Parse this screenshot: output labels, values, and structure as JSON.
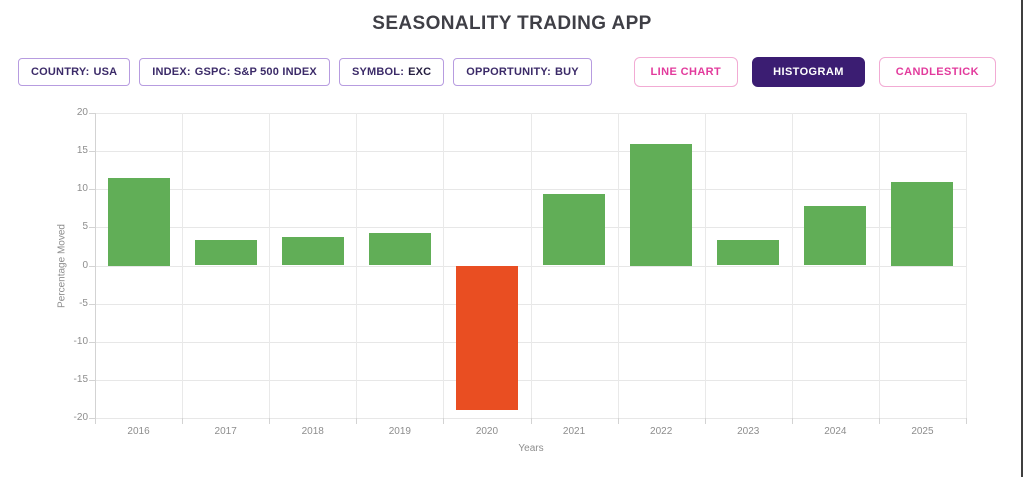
{
  "title": "SEASONALITY TRADING APP",
  "filters": [
    {
      "label": "COUNTRY:",
      "value": "USA"
    },
    {
      "label": "INDEX:",
      "value": "GSPC: S&P 500 INDEX"
    },
    {
      "label": "SYMBOL:",
      "value": "EXC"
    },
    {
      "label": "OPPORTUNITY:",
      "value": "BUY"
    }
  ],
  "view_buttons": [
    {
      "label": "LINE CHART",
      "active": false
    },
    {
      "label": "HISTOGRAM",
      "active": true
    },
    {
      "label": "CANDLESTICK",
      "active": false
    }
  ],
  "theme": {
    "accent_purple": "#3b1d72",
    "pink": "#e23a9c",
    "pink_border": "#f2abd4",
    "badge_border": "#b79ce0",
    "badge_text": "#3b2a68",
    "title_color": "#3f3f46"
  },
  "chart_data": {
    "type": "bar",
    "title": "",
    "categories": [
      "2016",
      "2017",
      "2018",
      "2019",
      "2020",
      "2021",
      "2022",
      "2023",
      "2024",
      "2025"
    ],
    "values": [
      11.5,
      3.4,
      3.8,
      4.2,
      -19,
      9.4,
      16,
      3.4,
      7.8,
      11
    ],
    "xlabel": "Years",
    "ylabel": "Percentage Moved",
    "ylim": [
      -20,
      20
    ],
    "ytick_step": 5,
    "yticks": [
      20,
      15,
      10,
      5,
      0,
      -5,
      -10,
      -15,
      -20
    ],
    "grid": true,
    "legend": false,
    "positive_color": "#61ae57",
    "negative_color": "#e94e22"
  }
}
